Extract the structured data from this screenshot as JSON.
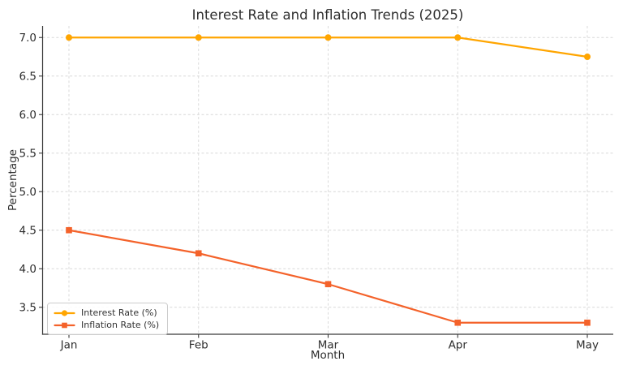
{
  "chart_data": {
    "type": "line",
    "title": "Interest Rate and Inflation Trends (2025)",
    "xlabel": "Month",
    "ylabel": "Percentage",
    "categories": [
      "Jan",
      "Feb",
      "Mar",
      "Apr",
      "May"
    ],
    "series": [
      {
        "name": "Interest Rate (%)",
        "color": "#ffa500",
        "marker": "circle",
        "values": [
          7.0,
          7.0,
          7.0,
          7.0,
          6.75
        ]
      },
      {
        "name": "Inflation Rate (%)",
        "color": "#f4622a",
        "marker": "square",
        "values": [
          4.5,
          4.2,
          3.8,
          3.3,
          3.3
        ]
      }
    ],
    "y_ticks": [
      3.5,
      4.0,
      4.5,
      5.0,
      5.5,
      6.0,
      6.5,
      7.0
    ],
    "y_tick_labels": [
      "3.5",
      "4.0",
      "4.5",
      "5.0",
      "5.5",
      "6.0",
      "6.5",
      "7.0"
    ],
    "ylim": [
      3.15,
      7.15
    ],
    "grid": true,
    "grid_style": "dashed",
    "legend_position": "lower left"
  },
  "style": {
    "background": "#ffffff",
    "grid_color": "#d7d7d7",
    "spine_color": "#3a3a3a",
    "text_color": "#2e2e2e"
  }
}
